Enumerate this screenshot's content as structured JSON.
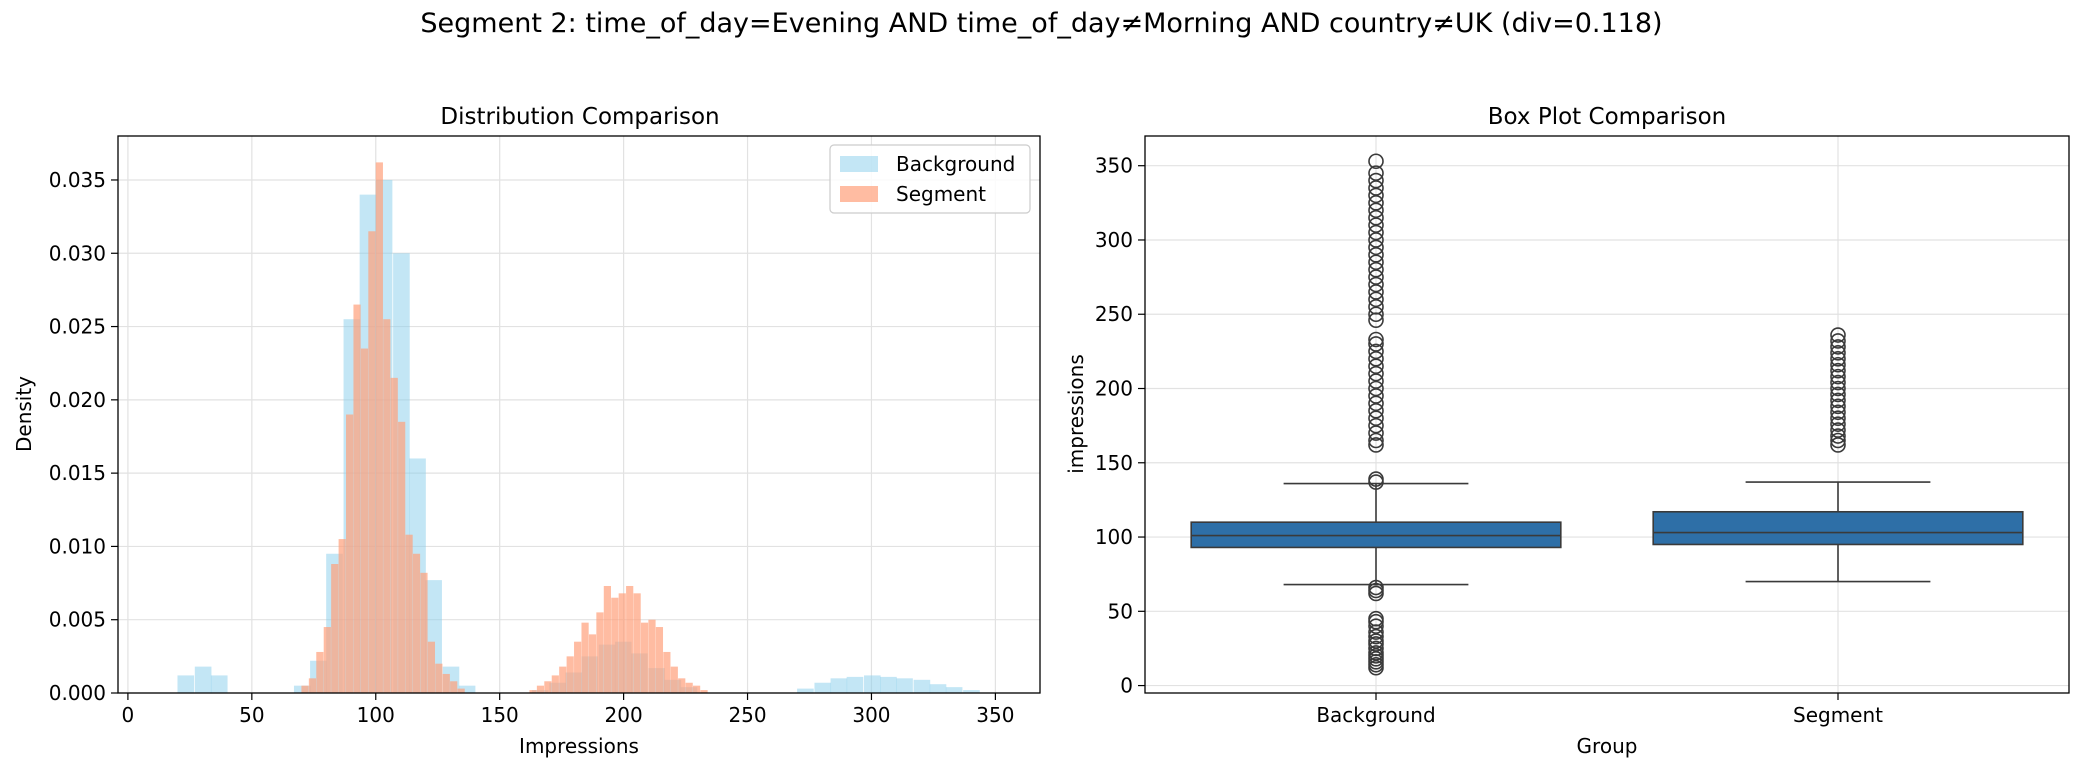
{
  "suptitle": "Segment 2: time_of_day=Evening AND time_of_day≠Morning AND country≠UK (div=0.118)",
  "colors": {
    "background_hist": "#87CEEB",
    "segment_hist": "#FFA07A",
    "box_fill": "#2E6FA7",
    "box_line": "#3A3A3A",
    "grid": "#E2E2E2"
  },
  "chart_data": [
    {
      "type": "histogram",
      "title": "Distribution Comparison",
      "xlabel": "Impressions",
      "ylabel": "Density",
      "xlim": [
        -4,
        368
      ],
      "ylim": [
        0,
        0.038
      ],
      "xticks": [
        0,
        50,
        100,
        150,
        200,
        250,
        300,
        350
      ],
      "yticks": [
        0.0,
        0.005,
        0.01,
        0.015,
        0.02,
        0.025,
        0.03,
        0.035
      ],
      "ytick_labels": [
        "0.000",
        "0.005",
        "0.010",
        "0.015",
        "0.020",
        "0.025",
        "0.030",
        "0.035"
      ],
      "grid": true,
      "legend_position": "top-right",
      "series": [
        {
          "name": "Background",
          "alpha": 0.5,
          "bin_width": 6.7,
          "bins": [
            [
              20,
              0.0012
            ],
            [
              27,
              0.0018
            ],
            [
              33.5,
              0.0012
            ],
            [
              67,
              0.0005
            ],
            [
              73.5,
              0.0022
            ],
            [
              80,
              0.0095
            ],
            [
              87,
              0.0255
            ],
            [
              93.5,
              0.034
            ],
            [
              100,
              0.035
            ],
            [
              107,
              0.03
            ],
            [
              113.5,
              0.016
            ],
            [
              120,
              0.0077
            ],
            [
              127,
              0.0018
            ],
            [
              133.5,
              0.0005
            ],
            [
              163,
              0.0002
            ],
            [
              170,
              0.0007
            ],
            [
              176.5,
              0.0014
            ],
            [
              183,
              0.0025
            ],
            [
              190,
              0.0033
            ],
            [
              196.5,
              0.0035
            ],
            [
              203,
              0.0027
            ],
            [
              210,
              0.0017
            ],
            [
              216.5,
              0.0009
            ],
            [
              223,
              0.0004
            ],
            [
              270,
              0.0003
            ],
            [
              277,
              0.0007
            ],
            [
              283.5,
              0.001
            ],
            [
              290,
              0.0011
            ],
            [
              297,
              0.0012
            ],
            [
              303.5,
              0.0011
            ],
            [
              310,
              0.001
            ],
            [
              317,
              0.0009
            ],
            [
              323.5,
              0.0006
            ],
            [
              330,
              0.0004
            ],
            [
              337,
              0.0002
            ]
          ]
        },
        {
          "name": "Segment",
          "alpha": 0.7,
          "bin_width": 2.9,
          "bins": [
            [
              70,
              0.0005
            ],
            [
              73,
              0.001
            ],
            [
              76,
              0.0028
            ],
            [
              79,
              0.0045
            ],
            [
              82,
              0.0088
            ],
            [
              85,
              0.0105
            ],
            [
              88,
              0.019
            ],
            [
              91,
              0.0265
            ],
            [
              94,
              0.0235
            ],
            [
              97,
              0.0315
            ],
            [
              100,
              0.0362
            ],
            [
              103,
              0.0255
            ],
            [
              106,
              0.0215
            ],
            [
              109,
              0.0185
            ],
            [
              112,
              0.0108
            ],
            [
              115,
              0.0095
            ],
            [
              118,
              0.0082
            ],
            [
              121,
              0.0035
            ],
            [
              124,
              0.002
            ],
            [
              127,
              0.0013
            ],
            [
              130,
              0.0008
            ],
            [
              133,
              0.0003
            ],
            [
              162,
              0.0002
            ],
            [
              165,
              0.0005
            ],
            [
              168,
              0.0008
            ],
            [
              171,
              0.0012
            ],
            [
              174,
              0.0018
            ],
            [
              177,
              0.0025
            ],
            [
              180,
              0.0035
            ],
            [
              183,
              0.0048
            ],
            [
              186,
              0.004
            ],
            [
              189,
              0.0055
            ],
            [
              192,
              0.0073
            ],
            [
              195,
              0.0065
            ],
            [
              198,
              0.0068
            ],
            [
              201,
              0.0073
            ],
            [
              204,
              0.0068
            ],
            [
              207,
              0.0048
            ],
            [
              210,
              0.005
            ],
            [
              213,
              0.0045
            ],
            [
              216,
              0.0028
            ],
            [
              219,
              0.0018
            ],
            [
              222,
              0.001
            ],
            [
              225,
              0.0007
            ],
            [
              228,
              0.0005
            ],
            [
              231,
              0.0002
            ]
          ]
        }
      ]
    },
    {
      "type": "box",
      "title": "Box Plot Comparison",
      "xlabel": "Group",
      "ylabel": "impressions",
      "categories": [
        "Background",
        "Segment"
      ],
      "ylim": [
        -5,
        370
      ],
      "yticks": [
        0,
        50,
        100,
        150,
        200,
        250,
        300,
        350
      ],
      "grid": true,
      "boxes": [
        {
          "name": "Background",
          "whisker_low": 68,
          "q1": 93,
          "median": 101,
          "q3": 110,
          "whisker_high": 136,
          "outliers": [
            12,
            14,
            16,
            18,
            20,
            22,
            25,
            28,
            30,
            33,
            36,
            40,
            43,
            45,
            62,
            64,
            66,
            137,
            139,
            162,
            165,
            170,
            175,
            180,
            185,
            190,
            195,
            200,
            205,
            210,
            215,
            220,
            225,
            230,
            233,
            246,
            250,
            255,
            260,
            265,
            270,
            275,
            280,
            285,
            290,
            295,
            300,
            305,
            310,
            315,
            320,
            325,
            330,
            335,
            340,
            345,
            353
          ]
        },
        {
          "name": "Segment",
          "whisker_low": 70,
          "q1": 95,
          "median": 103,
          "q3": 117,
          "whisker_high": 137,
          "outliers": [
            162,
            165,
            168,
            172,
            176,
            180,
            184,
            188,
            192,
            196,
            200,
            204,
            208,
            212,
            216,
            220,
            224,
            228,
            232,
            236
          ]
        }
      ]
    }
  ]
}
